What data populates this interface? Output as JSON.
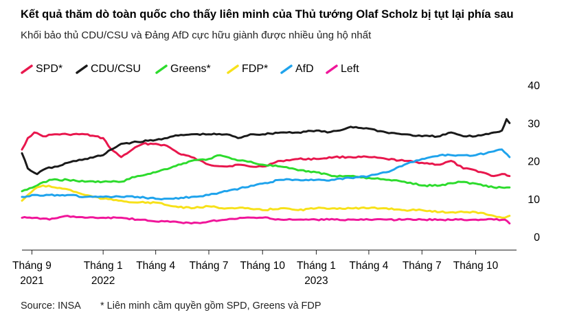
{
  "header": {
    "title": "Kết quả thăm dò toàn quốc cho thấy liên minh của Thủ tướng Olaf Scholz bị tụt lại phía sau",
    "subtitle": "Khối bảo thủ CDU/CSU và Đảng AfD cực hữu giành được nhiều ủng hộ nhất"
  },
  "footer": {
    "source": "Source: INSA",
    "note": "* Liên minh cầm quyền gồm SPD, Greens và FDP"
  },
  "chart_data": {
    "type": "line",
    "title": "Kết quả thăm dò toàn quốc cho thấy liên minh của Thủ tướng Olaf Scholz bị tụt lại phía sau",
    "subtitle": "Khối bảo thủ CDU/CSU và Đảng AfD cực hữu giành được nhiều ủng hộ nhất",
    "xlabel": "",
    "ylabel": "",
    "ylim": [
      0,
      40
    ],
    "yticks": [
      "0",
      "10",
      "20",
      "30",
      "40"
    ],
    "xlim": [
      "2021-08-15",
      "2023-12-10"
    ],
    "xticks": [
      {
        "date": "2021-09-01",
        "label": "Tháng 9",
        "year": "2021"
      },
      {
        "date": "2022-01-01",
        "label": "Tháng 1",
        "year": "2022"
      },
      {
        "date": "2022-04-01",
        "label": "Tháng 4",
        "year": ""
      },
      {
        "date": "2022-07-01",
        "label": "Tháng 7",
        "year": ""
      },
      {
        "date": "2022-10-01",
        "label": "Tháng 10",
        "year": ""
      },
      {
        "date": "2023-01-01",
        "label": "Tháng 1",
        "year": "2023"
      },
      {
        "date": "2023-04-01",
        "label": "Tháng 4",
        "year": ""
      },
      {
        "date": "2023-07-01",
        "label": "Tháng 7",
        "year": ""
      },
      {
        "date": "2023-10-01",
        "label": "Tháng 10",
        "year": ""
      }
    ],
    "grid": "off",
    "legend_position": "top-left",
    "series": [
      {
        "name": "SPD*",
        "color": "#e8174d",
        "points": [
          [
            "2021-08-15",
            23
          ],
          [
            "2021-08-25",
            26
          ],
          [
            "2021-09-05",
            27.5
          ],
          [
            "2021-09-20",
            26.5
          ],
          [
            "2021-10-10",
            27
          ],
          [
            "2021-11-01",
            27
          ],
          [
            "2021-12-01",
            27
          ],
          [
            "2022-01-01",
            26
          ],
          [
            "2022-01-15",
            23
          ],
          [
            "2022-02-01",
            21
          ],
          [
            "2022-02-20",
            23
          ],
          [
            "2022-03-10",
            24.5
          ],
          [
            "2022-04-01",
            24.5
          ],
          [
            "2022-04-20",
            24
          ],
          [
            "2022-05-10",
            22
          ],
          [
            "2022-06-01",
            21
          ],
          [
            "2022-07-01",
            19
          ],
          [
            "2022-08-01",
            18.5
          ],
          [
            "2022-08-20",
            19
          ],
          [
            "2022-09-10",
            18.5
          ],
          [
            "2022-10-01",
            18.5
          ],
          [
            "2022-11-01",
            20
          ],
          [
            "2022-12-01",
            20.5
          ],
          [
            "2023-01-01",
            20.5
          ],
          [
            "2023-02-01",
            21
          ],
          [
            "2023-03-01",
            21
          ],
          [
            "2023-04-01",
            21
          ],
          [
            "2023-05-01",
            20.5
          ],
          [
            "2023-06-01",
            20
          ],
          [
            "2023-07-01",
            19.5
          ],
          [
            "2023-08-01",
            19
          ],
          [
            "2023-08-20",
            20
          ],
          [
            "2023-09-10",
            18
          ],
          [
            "2023-10-01",
            17.5
          ],
          [
            "2023-11-01",
            16
          ],
          [
            "2023-11-20",
            16.5
          ],
          [
            "2023-11-28",
            16
          ]
        ]
      },
      {
        "name": "CDU/CSU",
        "color": "#1a1a1a",
        "points": [
          [
            "2021-08-15",
            22
          ],
          [
            "2021-08-25",
            18
          ],
          [
            "2021-09-10",
            16.5
          ],
          [
            "2021-09-25",
            18
          ],
          [
            "2021-10-15",
            18.5
          ],
          [
            "2021-11-01",
            19.5
          ],
          [
            "2021-12-01",
            20.5
          ],
          [
            "2022-01-01",
            21.5
          ],
          [
            "2022-01-15",
            23
          ],
          [
            "2022-02-01",
            24.5
          ],
          [
            "2022-03-01",
            25
          ],
          [
            "2022-04-01",
            25.5
          ],
          [
            "2022-05-01",
            26.5
          ],
          [
            "2022-06-01",
            27
          ],
          [
            "2022-07-01",
            27
          ],
          [
            "2022-08-01",
            27
          ],
          [
            "2022-08-20",
            26
          ],
          [
            "2022-09-10",
            27
          ],
          [
            "2022-10-01",
            27
          ],
          [
            "2022-11-01",
            27.5
          ],
          [
            "2022-12-01",
            27.5
          ],
          [
            "2023-01-01",
            28
          ],
          [
            "2023-01-20",
            27.5
          ],
          [
            "2023-02-10",
            28
          ],
          [
            "2023-03-01",
            29
          ],
          [
            "2023-04-01",
            28.5
          ],
          [
            "2023-05-01",
            27.5
          ],
          [
            "2023-06-01",
            27
          ],
          [
            "2023-07-01",
            26.5
          ],
          [
            "2023-08-01",
            26.5
          ],
          [
            "2023-08-20",
            27.5
          ],
          [
            "2023-09-10",
            26.5
          ],
          [
            "2023-10-01",
            26.5
          ],
          [
            "2023-11-01",
            27.5
          ],
          [
            "2023-11-15",
            28
          ],
          [
            "2023-11-23",
            31
          ],
          [
            "2023-11-28",
            30
          ]
        ]
      },
      {
        "name": "Greens*",
        "color": "#2ddb2d",
        "points": [
          [
            "2021-08-15",
            12
          ],
          [
            "2021-09-10",
            13.5
          ],
          [
            "2021-10-01",
            15
          ],
          [
            "2021-11-01",
            15
          ],
          [
            "2021-12-01",
            14.5
          ],
          [
            "2022-01-01",
            14.5
          ],
          [
            "2022-02-01",
            14.5
          ],
          [
            "2022-03-01",
            16
          ],
          [
            "2022-04-01",
            17
          ],
          [
            "2022-05-01",
            18.5
          ],
          [
            "2022-06-01",
            20
          ],
          [
            "2022-07-01",
            20.5
          ],
          [
            "2022-07-20",
            21.5
          ],
          [
            "2022-08-10",
            20.5
          ],
          [
            "2022-09-01",
            20
          ],
          [
            "2022-10-01",
            19
          ],
          [
            "2022-11-01",
            18.5
          ],
          [
            "2022-12-01",
            17.5
          ],
          [
            "2023-01-01",
            17
          ],
          [
            "2023-02-01",
            16
          ],
          [
            "2023-03-01",
            16
          ],
          [
            "2023-04-01",
            15.5
          ],
          [
            "2023-05-01",
            15
          ],
          [
            "2023-06-01",
            14.5
          ],
          [
            "2023-07-01",
            13.5
          ],
          [
            "2023-08-01",
            13.5
          ],
          [
            "2023-09-01",
            14.5
          ],
          [
            "2023-10-01",
            14
          ],
          [
            "2023-11-01",
            13
          ],
          [
            "2023-11-28",
            13
          ]
        ]
      },
      {
        "name": "FDP*",
        "color": "#f7e11a",
        "points": [
          [
            "2021-08-15",
            9.5
          ],
          [
            "2021-08-25",
            11
          ],
          [
            "2021-09-05",
            12.5
          ],
          [
            "2021-09-20",
            13.5
          ],
          [
            "2021-10-10",
            13
          ],
          [
            "2021-11-01",
            12.5
          ],
          [
            "2021-12-01",
            11
          ],
          [
            "2022-01-01",
            10
          ],
          [
            "2022-02-01",
            9.5
          ],
          [
            "2022-03-01",
            9
          ],
          [
            "2022-04-01",
            9
          ],
          [
            "2022-05-01",
            8
          ],
          [
            "2022-06-01",
            7.5
          ],
          [
            "2022-07-01",
            8
          ],
          [
            "2022-08-01",
            7.5
          ],
          [
            "2022-09-01",
            7.5
          ],
          [
            "2022-10-01",
            7
          ],
          [
            "2022-11-01",
            7.5
          ],
          [
            "2022-12-01",
            7
          ],
          [
            "2023-01-01",
            7.5
          ],
          [
            "2023-02-01",
            7.5
          ],
          [
            "2023-03-01",
            7.5
          ],
          [
            "2023-04-01",
            7.5
          ],
          [
            "2023-05-01",
            7.5
          ],
          [
            "2023-06-01",
            7
          ],
          [
            "2023-07-01",
            7
          ],
          [
            "2023-08-01",
            6.5
          ],
          [
            "2023-09-01",
            6.5
          ],
          [
            "2023-10-01",
            6.5
          ],
          [
            "2023-11-01",
            5.5
          ],
          [
            "2023-11-20",
            5
          ],
          [
            "2023-11-28",
            5.5
          ]
        ]
      },
      {
        "name": "AfD",
        "color": "#1fa3ec",
        "points": [
          [
            "2021-08-15",
            10.5
          ],
          [
            "2021-09-10",
            11
          ],
          [
            "2021-10-01",
            11
          ],
          [
            "2021-11-01",
            11
          ],
          [
            "2021-12-01",
            10.5
          ],
          [
            "2022-01-01",
            10.5
          ],
          [
            "2022-02-01",
            10.5
          ],
          [
            "2022-03-01",
            10.5
          ],
          [
            "2022-04-01",
            10
          ],
          [
            "2022-05-01",
            10
          ],
          [
            "2022-06-01",
            10.5
          ],
          [
            "2022-07-01",
            11
          ],
          [
            "2022-08-01",
            12
          ],
          [
            "2022-09-01",
            13
          ],
          [
            "2022-10-01",
            14
          ],
          [
            "2022-11-01",
            15
          ],
          [
            "2022-12-01",
            15
          ],
          [
            "2023-01-01",
            15
          ],
          [
            "2023-02-01",
            15
          ],
          [
            "2023-03-01",
            15.5
          ],
          [
            "2023-04-01",
            16
          ],
          [
            "2023-05-01",
            17
          ],
          [
            "2023-06-01",
            19
          ],
          [
            "2023-07-01",
            20.5
          ],
          [
            "2023-08-01",
            21.5
          ],
          [
            "2023-09-01",
            21.5
          ],
          [
            "2023-10-01",
            21.5
          ],
          [
            "2023-11-01",
            22.5
          ],
          [
            "2023-11-15",
            23
          ],
          [
            "2023-11-28",
            21
          ]
        ]
      },
      {
        "name": "Left",
        "color": "#f0169a",
        "points": [
          [
            "2021-08-15",
            5
          ],
          [
            "2021-09-10",
            5
          ],
          [
            "2021-10-01",
            4.5
          ],
          [
            "2021-11-01",
            5.5
          ],
          [
            "2021-12-01",
            5
          ],
          [
            "2022-01-01",
            5
          ],
          [
            "2022-02-01",
            5
          ],
          [
            "2022-03-01",
            4.5
          ],
          [
            "2022-04-01",
            4
          ],
          [
            "2022-05-01",
            4
          ],
          [
            "2022-06-01",
            3.5
          ],
          [
            "2022-07-01",
            4
          ],
          [
            "2022-08-01",
            4.5
          ],
          [
            "2022-09-01",
            5
          ],
          [
            "2022-10-01",
            5
          ],
          [
            "2022-11-01",
            4.5
          ],
          [
            "2022-12-01",
            4.5
          ],
          [
            "2023-01-01",
            4.5
          ],
          [
            "2023-02-01",
            4.5
          ],
          [
            "2023-03-01",
            4.5
          ],
          [
            "2023-04-01",
            4.5
          ],
          [
            "2023-05-01",
            4.5
          ],
          [
            "2023-06-01",
            4.5
          ],
          [
            "2023-07-01",
            4.5
          ],
          [
            "2023-08-01",
            4.5
          ],
          [
            "2023-09-01",
            4.5
          ],
          [
            "2023-10-01",
            4.5
          ],
          [
            "2023-11-01",
            4.5
          ],
          [
            "2023-11-20",
            4.5
          ],
          [
            "2023-11-28",
            3.5
          ]
        ]
      }
    ]
  }
}
